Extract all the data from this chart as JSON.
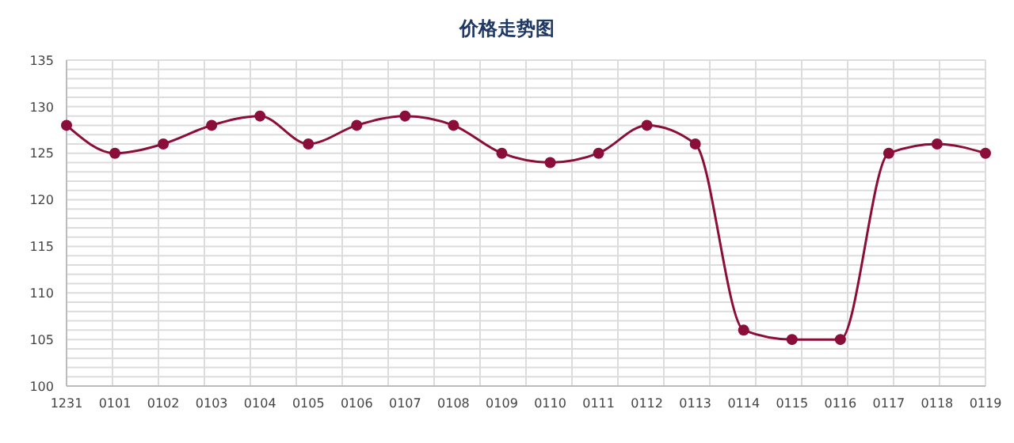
{
  "chart_data": {
    "type": "line",
    "title": "价格走势图",
    "categories": [
      "1231",
      "0101",
      "0102",
      "0103",
      "0104",
      "0105",
      "0106",
      "0107",
      "0108",
      "0109",
      "0110",
      "0111",
      "0112",
      "0113",
      "0114",
      "0115",
      "0116",
      "0117",
      "0118",
      "0119"
    ],
    "series": [
      {
        "color": "#8b0d3a",
        "values": [
          128,
          125,
          126,
          128,
          129,
          126,
          128,
          129,
          128,
          125,
          124,
          125,
          128,
          126,
          106,
          105,
          105,
          125,
          126,
          125
        ]
      }
    ],
    "ylim": [
      100,
      135
    ],
    "yticks": [
      100,
      {
        "value": 101,
        "label": null
      },
      {
        "value": 102,
        "label": null
      },
      {
        "value": 103,
        "label": null
      },
      {
        "value": 104,
        "label": null
      },
      105,
      {
        "value": 106,
        "label": null
      },
      {
        "value": 107,
        "label": null
      },
      {
        "value": 108,
        "label": null
      },
      {
        "value": 109,
        "label": null
      },
      110,
      {
        "value": 111,
        "label": null
      },
      {
        "value": 112,
        "label": null
      },
      {
        "value": 113,
        "label": null
      },
      {
        "value": 114,
        "label": null
      },
      115,
      {
        "value": 116,
        "label": null
      },
      {
        "value": 117,
        "label": null
      },
      {
        "value": 118,
        "label": null
      },
      {
        "value": 119,
        "label": null
      },
      120,
      {
        "value": 121,
        "label": null
      },
      {
        "value": 122,
        "label": null
      },
      {
        "value": 123,
        "label": null
      },
      {
        "value": 124,
        "label": null
      },
      125,
      {
        "value": 126,
        "label": null
      },
      {
        "value": 127,
        "label": null
      },
      {
        "value": 128,
        "label": null
      },
      {
        "value": 129,
        "label": null
      },
      130,
      {
        "value": 131,
        "label": null
      },
      {
        "value": 132,
        "label": null
      },
      {
        "value": 133,
        "label": null
      },
      {
        "value": 134,
        "label": null
      },
      135
    ],
    "grid": true,
    "marker": "circle",
    "line_style": "solid",
    "legend": false
  }
}
